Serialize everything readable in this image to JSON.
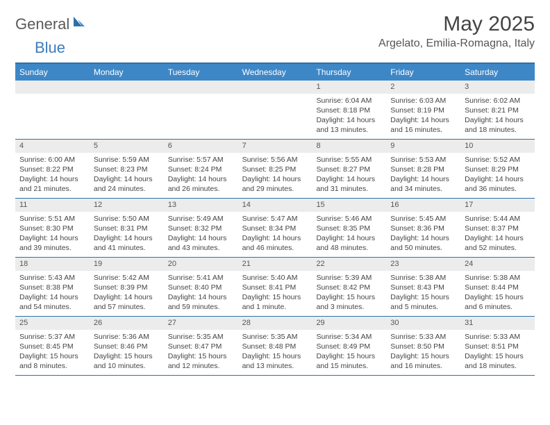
{
  "logo": {
    "part1": "General",
    "part2": "Blue"
  },
  "title": "May 2025",
  "location": "Argelato, Emilia-Romagna, Italy",
  "colors": {
    "header_bg": "#3d87c7",
    "border": "#2f6fa8",
    "daynum_bg": "#ececec",
    "text": "#444444",
    "logo_gray": "#5a5a5a",
    "logo_blue": "#3b7bbf"
  },
  "day_names": [
    "Sunday",
    "Monday",
    "Tuesday",
    "Wednesday",
    "Thursday",
    "Friday",
    "Saturday"
  ],
  "weeks": [
    [
      null,
      null,
      null,
      null,
      {
        "n": "1",
        "sunrise": "6:04 AM",
        "sunset": "8:18 PM",
        "daylight": "14 hours and 13 minutes."
      },
      {
        "n": "2",
        "sunrise": "6:03 AM",
        "sunset": "8:19 PM",
        "daylight": "14 hours and 16 minutes."
      },
      {
        "n": "3",
        "sunrise": "6:02 AM",
        "sunset": "8:21 PM",
        "daylight": "14 hours and 18 minutes."
      }
    ],
    [
      {
        "n": "4",
        "sunrise": "6:00 AM",
        "sunset": "8:22 PM",
        "daylight": "14 hours and 21 minutes."
      },
      {
        "n": "5",
        "sunrise": "5:59 AM",
        "sunset": "8:23 PM",
        "daylight": "14 hours and 24 minutes."
      },
      {
        "n": "6",
        "sunrise": "5:57 AM",
        "sunset": "8:24 PM",
        "daylight": "14 hours and 26 minutes."
      },
      {
        "n": "7",
        "sunrise": "5:56 AM",
        "sunset": "8:25 PM",
        "daylight": "14 hours and 29 minutes."
      },
      {
        "n": "8",
        "sunrise": "5:55 AM",
        "sunset": "8:27 PM",
        "daylight": "14 hours and 31 minutes."
      },
      {
        "n": "9",
        "sunrise": "5:53 AM",
        "sunset": "8:28 PM",
        "daylight": "14 hours and 34 minutes."
      },
      {
        "n": "10",
        "sunrise": "5:52 AM",
        "sunset": "8:29 PM",
        "daylight": "14 hours and 36 minutes."
      }
    ],
    [
      {
        "n": "11",
        "sunrise": "5:51 AM",
        "sunset": "8:30 PM",
        "daylight": "14 hours and 39 minutes."
      },
      {
        "n": "12",
        "sunrise": "5:50 AM",
        "sunset": "8:31 PM",
        "daylight": "14 hours and 41 minutes."
      },
      {
        "n": "13",
        "sunrise": "5:49 AM",
        "sunset": "8:32 PM",
        "daylight": "14 hours and 43 minutes."
      },
      {
        "n": "14",
        "sunrise": "5:47 AM",
        "sunset": "8:34 PM",
        "daylight": "14 hours and 46 minutes."
      },
      {
        "n": "15",
        "sunrise": "5:46 AM",
        "sunset": "8:35 PM",
        "daylight": "14 hours and 48 minutes."
      },
      {
        "n": "16",
        "sunrise": "5:45 AM",
        "sunset": "8:36 PM",
        "daylight": "14 hours and 50 minutes."
      },
      {
        "n": "17",
        "sunrise": "5:44 AM",
        "sunset": "8:37 PM",
        "daylight": "14 hours and 52 minutes."
      }
    ],
    [
      {
        "n": "18",
        "sunrise": "5:43 AM",
        "sunset": "8:38 PM",
        "daylight": "14 hours and 54 minutes."
      },
      {
        "n": "19",
        "sunrise": "5:42 AM",
        "sunset": "8:39 PM",
        "daylight": "14 hours and 57 minutes."
      },
      {
        "n": "20",
        "sunrise": "5:41 AM",
        "sunset": "8:40 PM",
        "daylight": "14 hours and 59 minutes."
      },
      {
        "n": "21",
        "sunrise": "5:40 AM",
        "sunset": "8:41 PM",
        "daylight": "15 hours and 1 minute."
      },
      {
        "n": "22",
        "sunrise": "5:39 AM",
        "sunset": "8:42 PM",
        "daylight": "15 hours and 3 minutes."
      },
      {
        "n": "23",
        "sunrise": "5:38 AM",
        "sunset": "8:43 PM",
        "daylight": "15 hours and 5 minutes."
      },
      {
        "n": "24",
        "sunrise": "5:38 AM",
        "sunset": "8:44 PM",
        "daylight": "15 hours and 6 minutes."
      }
    ],
    [
      {
        "n": "25",
        "sunrise": "5:37 AM",
        "sunset": "8:45 PM",
        "daylight": "15 hours and 8 minutes."
      },
      {
        "n": "26",
        "sunrise": "5:36 AM",
        "sunset": "8:46 PM",
        "daylight": "15 hours and 10 minutes."
      },
      {
        "n": "27",
        "sunrise": "5:35 AM",
        "sunset": "8:47 PM",
        "daylight": "15 hours and 12 minutes."
      },
      {
        "n": "28",
        "sunrise": "5:35 AM",
        "sunset": "8:48 PM",
        "daylight": "15 hours and 13 minutes."
      },
      {
        "n": "29",
        "sunrise": "5:34 AM",
        "sunset": "8:49 PM",
        "daylight": "15 hours and 15 minutes."
      },
      {
        "n": "30",
        "sunrise": "5:33 AM",
        "sunset": "8:50 PM",
        "daylight": "15 hours and 16 minutes."
      },
      {
        "n": "31",
        "sunrise": "5:33 AM",
        "sunset": "8:51 PM",
        "daylight": "15 hours and 18 minutes."
      }
    ]
  ],
  "labels": {
    "sunrise_prefix": "Sunrise: ",
    "sunset_prefix": "Sunset: ",
    "daylight_prefix": "Daylight: "
  }
}
